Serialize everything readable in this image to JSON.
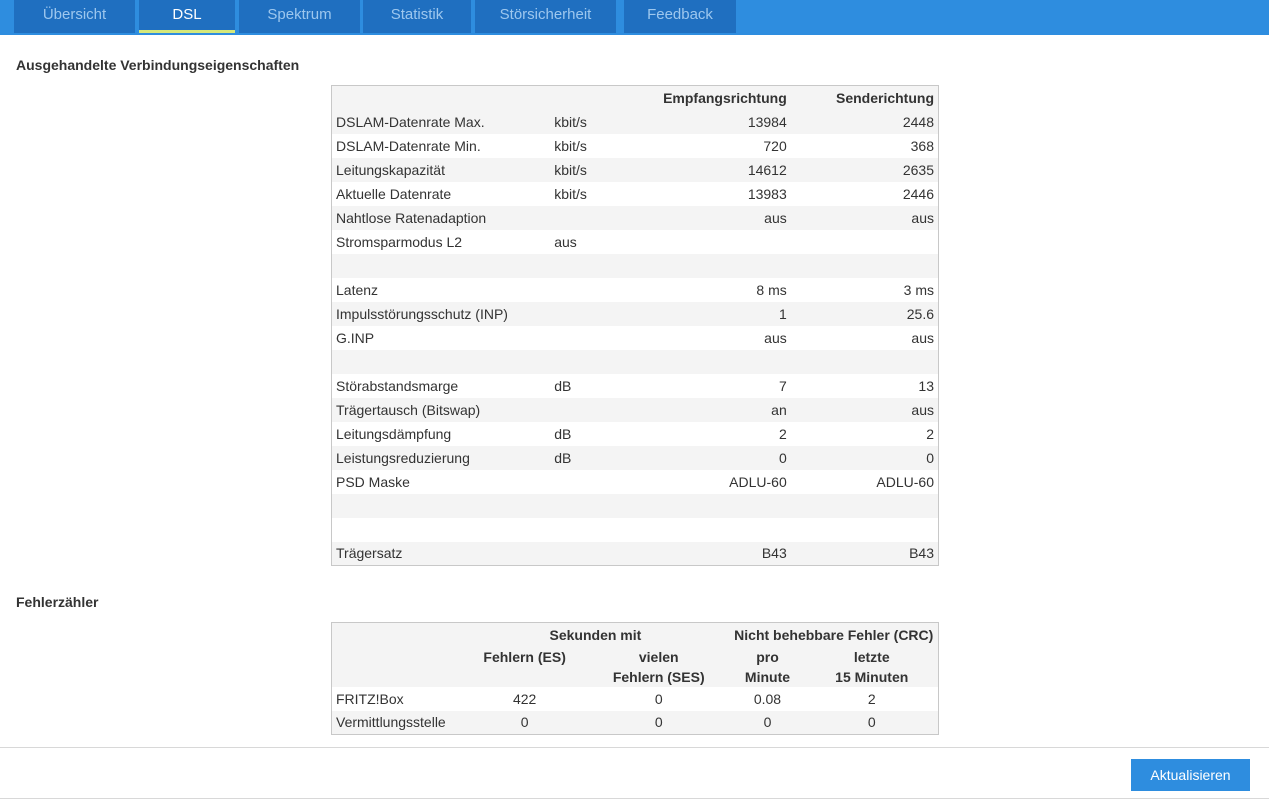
{
  "tabs": [
    {
      "label": "Übersicht"
    },
    {
      "label": "DSL"
    },
    {
      "label": "Spektrum"
    },
    {
      "label": "Statistik"
    },
    {
      "label": "Störsicherheit"
    },
    {
      "label": "Feedback"
    }
  ],
  "active_tab": "DSL",
  "colors": {
    "accent": "#2e8ddf",
    "tab_bg": "#1f6fc0",
    "tab_active_underline": "#d6e87a"
  },
  "props": {
    "title": "Ausgehandelte Verbindungseigenschaften",
    "header": {
      "rx": "Empfangsrichtung",
      "tx": "Senderichtung"
    },
    "rows": [
      {
        "label": "DSLAM-Datenrate Max.",
        "unit": "kbit/s",
        "rx": "13984",
        "tx": "2448"
      },
      {
        "label": "DSLAM-Datenrate Min.",
        "unit": "kbit/s",
        "rx": "720",
        "tx": "368"
      },
      {
        "label": "Leitungskapazität",
        "unit": "kbit/s",
        "rx": "14612",
        "tx": "2635"
      },
      {
        "label": "Aktuelle Datenrate",
        "unit": "kbit/s",
        "rx": "13983",
        "tx": "2446"
      },
      {
        "label": "Nahtlose Ratenadaption",
        "unit": "",
        "rx": "aus",
        "tx": "aus"
      },
      {
        "label": "Stromsparmodus L2",
        "unit": "aus",
        "rx": "",
        "tx": ""
      },
      {
        "label": "",
        "unit": "",
        "rx": "",
        "tx": ""
      },
      {
        "label": "Latenz",
        "unit": "",
        "rx": "8 ms",
        "tx": "3 ms"
      },
      {
        "label": "Impulsstörungsschutz (INP)",
        "unit": "",
        "rx": "1",
        "tx": "25.6"
      },
      {
        "label": "G.INP",
        "unit": "",
        "rx": "aus",
        "tx": "aus"
      },
      {
        "label": "",
        "unit": "",
        "rx": "",
        "tx": ""
      },
      {
        "label": "Störabstandsmarge",
        "unit": "dB",
        "rx": "7",
        "tx": "13"
      },
      {
        "label": "Trägertausch (Bitswap)",
        "unit": "",
        "rx": "an",
        "tx": "aus"
      },
      {
        "label": "Leitungsdämpfung",
        "unit": "dB",
        "rx": "2",
        "tx": "2"
      },
      {
        "label": "Leistungsreduzierung",
        "unit": "dB",
        "rx": "0",
        "tx": "0"
      },
      {
        "label": "PSD Maske",
        "unit": "",
        "rx": "ADLU-60",
        "tx": "ADLU-60"
      },
      {
        "label": "",
        "unit": "",
        "rx": "",
        "tx": ""
      },
      {
        "label": "",
        "unit": "",
        "rx": "",
        "tx": ""
      },
      {
        "label": "Trägersatz",
        "unit": "",
        "rx": "B43",
        "tx": "B43"
      }
    ]
  },
  "errors": {
    "title": "Fehlerzähler",
    "group1": "Sekunden mit",
    "group2": "Nicht behebbare Fehler (CRC)",
    "col_es": "Fehlern (ES)",
    "col_ses_1": "vielen",
    "col_ses_2": "Fehlern (SES)",
    "col_pm_1": "pro",
    "col_pm_2": "Minute",
    "col_15_1": "letzte",
    "col_15_2": "15 Minuten",
    "rows": [
      {
        "label": "FRITZ!Box",
        "es": "422",
        "ses": "0",
        "pm": "0.08",
        "m15": "2"
      },
      {
        "label": "Vermittlungsstelle",
        "es": "0",
        "ses": "0",
        "pm": "0",
        "m15": "0"
      }
    ]
  },
  "refresh_button": "Aktualisieren"
}
